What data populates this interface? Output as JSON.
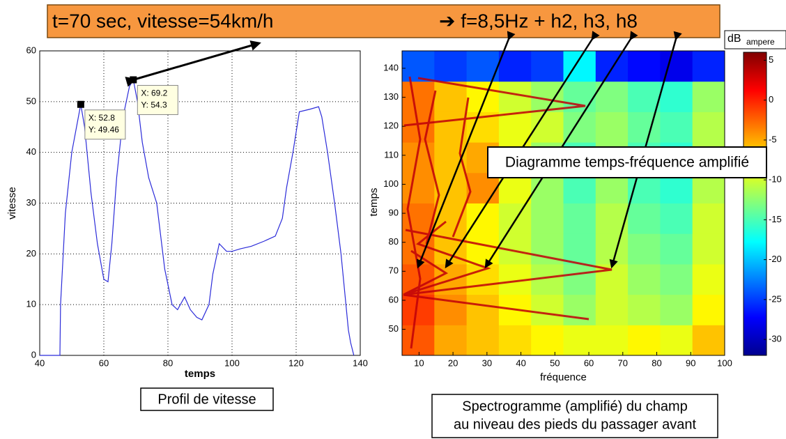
{
  "banner": {
    "left": "t=70 sec, vitesse=54km/h",
    "right": "➔ f=8,5Hz + h2, h3, h8"
  },
  "chart_data": [
    {
      "type": "line",
      "xlabel": "temps",
      "ylabel": "vitesse",
      "color": "#2b2bd9",
      "x": [
        40,
        46.3,
        46.5,
        48,
        50,
        52.8,
        54,
        56,
        58,
        60,
        61.3,
        62.5,
        64,
        66,
        68,
        69.2,
        70.5,
        72,
        74,
        76.5,
        79,
        81.3,
        83,
        85.2,
        87,
        89,
        90.6,
        92.8,
        94,
        96,
        98.3,
        100,
        102.6,
        106,
        110,
        113.5,
        115.7,
        117,
        119,
        121,
        124.3,
        127,
        128,
        129.8,
        132,
        134,
        136.3,
        137,
        138
      ],
      "values": [
        0,
        0,
        10,
        28,
        40,
        49.46,
        45,
        32,
        22,
        15,
        14.5,
        22,
        35,
        47,
        53,
        54.3,
        50,
        42,
        35,
        30,
        17,
        10,
        9,
        11.5,
        9,
        7.5,
        7,
        10,
        16,
        22,
        20.5,
        20.5,
        21,
        21.5,
        22.5,
        23.5,
        27,
        33,
        40,
        48,
        48.5,
        49,
        47,
        40,
        30,
        20,
        5,
        2.5,
        0
      ],
      "xlim": [
        40,
        140
      ],
      "xticks": [
        40,
        60,
        80,
        100,
        120,
        140
      ],
      "ylim": [
        0,
        60
      ],
      "yticks": [
        0,
        10,
        20,
        30,
        40,
        50,
        60
      ],
      "grid": true,
      "datatips": [
        {
          "x": 52.8,
          "y": 49.46,
          "x_label": "X: 52.8",
          "y_label": "Y: 49.46"
        },
        {
          "x": 69.2,
          "y": 54.3,
          "x_label": "X: 69.2",
          "y_label": "Y: 54.3"
        }
      ],
      "caption": "Profil de vitesse"
    },
    {
      "type": "heatmap",
      "xlabel": "fréquence",
      "ylabel": "temps",
      "xlim": [
        5,
        100
      ],
      "xticks": [
        10,
        20,
        30,
        40,
        50,
        60,
        70,
        80,
        90,
        100
      ],
      "ylim": [
        41,
        146
      ],
      "yticks": [
        50,
        60,
        70,
        80,
        90,
        100,
        110,
        120,
        130,
        140
      ],
      "z": [
        [
          -2,
          -5,
          -6,
          -7,
          -8,
          -9,
          -9,
          -8,
          -9,
          -6
        ],
        [
          -1,
          -4,
          -6,
          -8,
          -10,
          -12,
          -10,
          -11,
          -12,
          -8
        ],
        [
          -2,
          -5,
          -7,
          -9,
          -11,
          -13,
          -10,
          -12,
          -13,
          -9
        ],
        [
          -3,
          -6,
          -8,
          -10,
          -12,
          -14,
          -11,
          -13,
          -14,
          -10
        ],
        [
          -3,
          -6,
          -8,
          -10,
          -12,
          -14,
          -11,
          -14,
          -15,
          -10
        ],
        [
          -4,
          -6,
          -4,
          -9,
          -12,
          -15,
          -12,
          -15,
          -16,
          -11
        ],
        [
          -4,
          -6,
          -5,
          -9,
          -12,
          -15,
          -12,
          -15,
          -16,
          -11
        ],
        [
          -3,
          -6,
          -7,
          -9,
          -10,
          -13,
          -12,
          -14,
          -15,
          -11
        ],
        [
          -3,
          -6,
          -8,
          -10,
          -12,
          -14,
          -13,
          -15,
          -16,
          -12
        ],
        [
          -24,
          -25,
          -24,
          -26,
          -25,
          -18,
          -26,
          -27,
          -28,
          -26
        ]
      ],
      "clim": [
        -32,
        6
      ],
      "cticks": [
        5,
        0,
        -5,
        -10,
        -15,
        -20,
        -25,
        -30
      ],
      "colorbar_label": "dB",
      "colorbar_unit": "ampere",
      "annotation": "Diagramme temps-fréquence amplifié",
      "caption": [
        "Spectrogramme (amplifié) du champ",
        "au niveau des pieds du passager avant"
      ]
    }
  ]
}
